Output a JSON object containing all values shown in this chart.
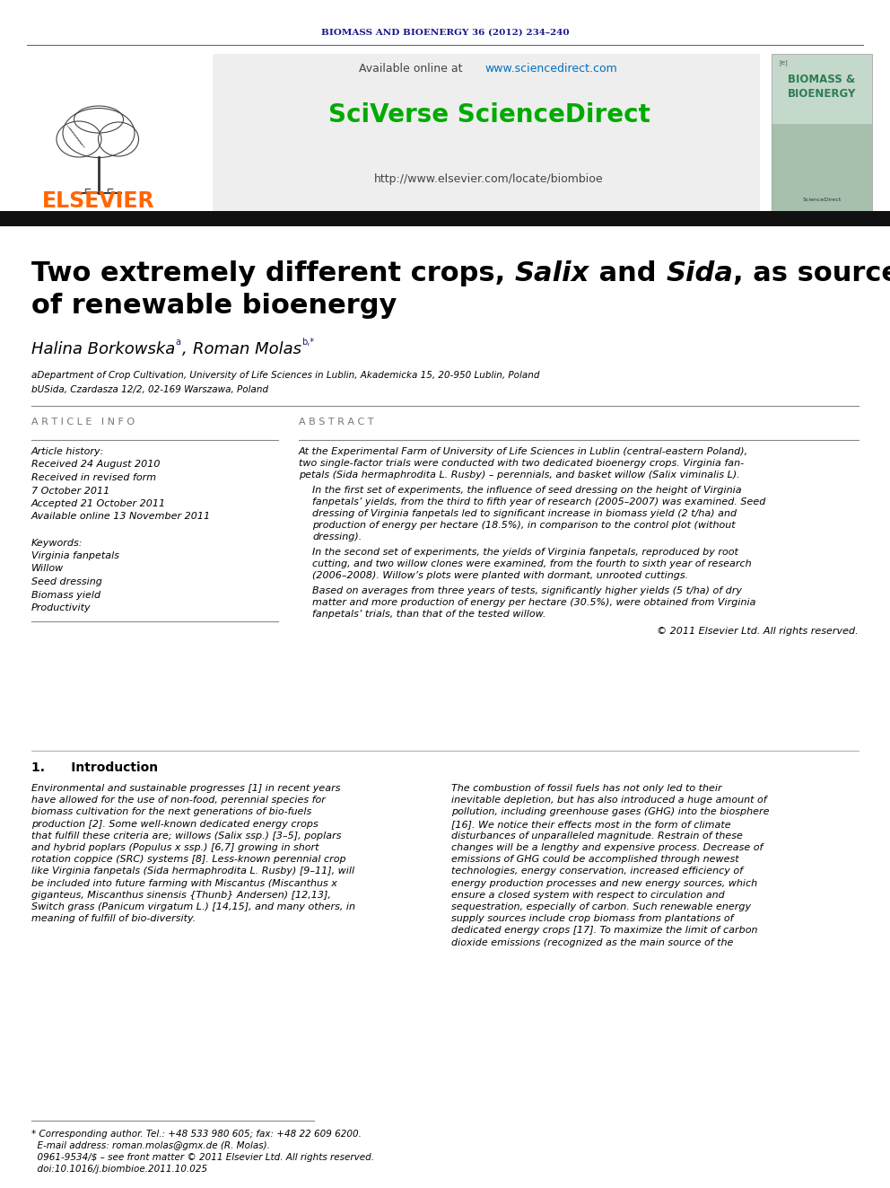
{
  "journal_header": "BIOMASS AND BIOENERGY 36 (2012) 234–240",
  "journal_header_color": "#1a1a8c",
  "available_online_url_color": "#0070c0",
  "sciverse_text": "SciVerse ScienceDirect",
  "sciverse_color": "#00aa00",
  "url_text": "http://www.elsevier.com/locate/biombioe",
  "journal_cover_title_line1": "BIOMASS &",
  "journal_cover_title_line2": "BIOENERGY",
  "journal_cover_color": "#2e7d52",
  "paper_title_part1": "Two extremely different crops, ",
  "paper_title_salix": "Salix",
  "paper_title_and": " and ",
  "paper_title_sida": "Sida",
  "paper_title_rest": ", as sources",
  "paper_title_line2": "of renewable bioenergy",
  "paper_title_fontsize": 22,
  "author1": "Halina Borkowska",
  "author1_super": "a",
  "author2": "Roman Molas",
  "author2_super": "b,*",
  "affil_a": "aDepartment of Crop Cultivation, University of Life Sciences in Lublin, Akademicka 15, 20-950 Lublin, Poland",
  "affil_b": "bUSida, Czardasza 12/2, 02-169 Warszawa, Poland",
  "article_info_header": "A R T I C L E   I N F O",
  "abstract_header": "A B S T R A C T",
  "article_history_label": "Article history:",
  "received1": "Received 24 August 2010",
  "received2a": "Received in revised form",
  "received2b": "7 October 2011",
  "accepted": "Accepted 21 October 2011",
  "available_online": "Available online 13 November 2011",
  "keywords_label": "Keywords:",
  "keywords": [
    "Virginia fanpetals",
    "Willow",
    "Seed dressing",
    "Biomass yield",
    "Productivity"
  ],
  "abstract_para1a": "At the Experimental Farm of University of Life Sciences in Lublin (central-eastern Poland),",
  "abstract_para1b": "two single-factor trials were conducted with two dedicated bioenergy crops. Virginia fan-",
  "abstract_para1c": "petals (Sida hermaphrodita L. Rusby) – perennials, and basket willow (Salix viminalis L).",
  "abstract_para2a": "In the first set of experiments, the influence of seed dressing on the height of Virginia",
  "abstract_para2b": "fanpetals’ yields, from the third to fifth year of research (2005–2007) was examined. Seed",
  "abstract_para2c": "dressing of Virginia fanpetals led to significant increase in biomass yield (2 t/ha) and",
  "abstract_para2d": "production of energy per hectare (18.5%), in comparison to the control plot (without",
  "abstract_para2e": "dressing).",
  "abstract_para3a": "In the second set of experiments, the yields of Virginia fanpetals, reproduced by root",
  "abstract_para3b": "cutting, and two willow clones were examined, from the fourth to sixth year of research",
  "abstract_para3c": "(2006–2008). Willow’s plots were planted with dormant, unrooted cuttings.",
  "abstract_para4a": "Based on averages from three years of tests, significantly higher yields (5 t/ha) of dry",
  "abstract_para4b": "matter and more production of energy per hectare (30.5%), were obtained from Virginia",
  "abstract_para4c": "fanpetals’ trials, than that of the tested willow.",
  "copyright": "© 2011 Elsevier Ltd. All rights reserved.",
  "section1_title": "1.      Introduction",
  "intro_col1_lines": [
    "Environmental and sustainable progresses [1] in recent years",
    "have allowed for the use of non-food, perennial species for",
    "biomass cultivation for the next generations of bio-fuels",
    "production [2]. Some well-known dedicated energy crops",
    "that fulfill these criteria are; willows (Salix ssp.) [3–5], poplars",
    "and hybrid poplars (Populus x ssp.) [6,7] growing in short",
    "rotation coppice (SRC) systems [8]. Less-known perennial crop",
    "like Virginia fanpetals (Sida hermaphrodita L. Rusby) [9–11], will",
    "be included into future farming with Miscantus (Miscanthus x",
    "giganteus, Miscanthus sinensis {Thunb} Andersen) [12,13],",
    "Switch grass (Panicum virgatum L.) [14,15], and many others, in",
    "meaning of fulfill of bio-diversity."
  ],
  "intro_col2_lines": [
    "The combustion of fossil fuels has not only led to their",
    "inevitable depletion, but has also introduced a huge amount of",
    "pollution, including greenhouse gases (GHG) into the biosphere",
    "[16]. We notice their effects most in the form of climate",
    "disturbances of unparalleled magnitude. Restrain of these",
    "changes will be a lengthy and expensive process. Decrease of",
    "emissions of GHG could be accomplished through newest",
    "technologies, energy conservation, increased efficiency of",
    "energy production processes and new energy sources, which",
    "ensure a closed system with respect to circulation and",
    "sequestration, especially of carbon. Such renewable energy",
    "supply sources include crop biomass from plantations of",
    "dedicated energy crops [17]. To maximize the limit of carbon",
    "dioxide emissions (recognized as the main source of the"
  ],
  "footnote_lines": [
    "* Corresponding author. Tel.: +48 533 980 605; fax: +48 22 609 6200.",
    "  E-mail address: roman.molas@gmx.de (R. Molas).",
    "  0961-9534/$ – see front matter © 2011 Elsevier Ltd. All rights reserved.",
    "  doi:10.1016/j.biombioe.2011.10.025"
  ],
  "bg_color": "#ffffff",
  "text_color": "#000000",
  "elsevier_orange": "#ff6600",
  "dark_navy": "#1a1a6e"
}
